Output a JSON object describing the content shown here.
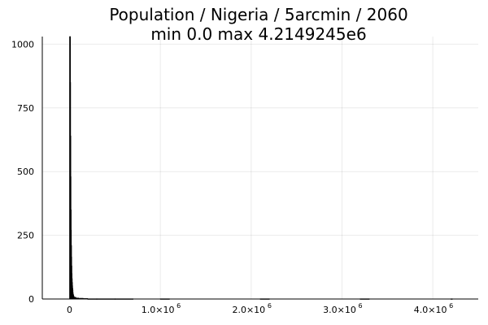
{
  "chart_data": {
    "type": "bar",
    "title_lines": [
      "Population / Nigeria / 5arcmin / 2060",
      "min 0.0  max 4.2149245e6"
    ],
    "xlabel": "",
    "ylabel": "",
    "xlim": [
      -300000,
      4500000
    ],
    "ylim": [
      0,
      1030
    ],
    "grid": true,
    "legend": "none",
    "bar_color": "#000000",
    "x_ticks": [
      {
        "value": 0,
        "mantissa": "0",
        "exp": ""
      },
      {
        "value": 1000000,
        "mantissa": "1.0×10",
        "exp": "6"
      },
      {
        "value": 2000000,
        "mantissa": "2.0×10",
        "exp": "6"
      },
      {
        "value": 3000000,
        "mantissa": "3.0×10",
        "exp": "6"
      },
      {
        "value": 4000000,
        "mantissa": "4.0×10",
        "exp": "6"
      }
    ],
    "y_ticks": [
      {
        "value": 0,
        "label": "0"
      },
      {
        "value": 250,
        "label": "250"
      },
      {
        "value": 500,
        "label": "500"
      },
      {
        "value": 750,
        "label": "750"
      },
      {
        "value": 1000,
        "label": "1000"
      }
    ],
    "bins": [
      {
        "x0": 0,
        "x1": 2000,
        "count": 1030
      },
      {
        "x0": 2000,
        "x1": 4000,
        "count": 850
      },
      {
        "x0": 4000,
        "x1": 6000,
        "count": 640
      },
      {
        "x0": 6000,
        "x1": 8000,
        "count": 480
      },
      {
        "x0": 8000,
        "x1": 10000,
        "count": 350
      },
      {
        "x0": 10000,
        "x1": 12000,
        "count": 270
      },
      {
        "x0": 12000,
        "x1": 14000,
        "count": 210
      },
      {
        "x0": 14000,
        "x1": 16000,
        "count": 165
      },
      {
        "x0": 16000,
        "x1": 18000,
        "count": 130
      },
      {
        "x0": 18000,
        "x1": 20000,
        "count": 100
      },
      {
        "x0": 20000,
        "x1": 22000,
        "count": 80
      },
      {
        "x0": 22000,
        "x1": 24000,
        "count": 65
      },
      {
        "x0": 24000,
        "x1": 26000,
        "count": 52
      },
      {
        "x0": 26000,
        "x1": 28000,
        "count": 42
      },
      {
        "x0": 28000,
        "x1": 30000,
        "count": 35
      },
      {
        "x0": 30000,
        "x1": 35000,
        "count": 25
      },
      {
        "x0": 35000,
        "x1": 40000,
        "count": 17
      },
      {
        "x0": 40000,
        "x1": 50000,
        "count": 11
      },
      {
        "x0": 50000,
        "x1": 70000,
        "count": 7
      },
      {
        "x0": 70000,
        "x1": 100000,
        "count": 4
      },
      {
        "x0": 100000,
        "x1": 150000,
        "count": 3
      },
      {
        "x0": 150000,
        "x1": 200000,
        "count": 2
      },
      {
        "x0": 200000,
        "x1": 300000,
        "count": 1
      },
      {
        "x0": 300000,
        "x1": 500000,
        "count": 1
      },
      {
        "x0": 500000,
        "x1": 700000,
        "count": 1
      },
      {
        "x0": 1000000,
        "x1": 1100000,
        "count": 1
      },
      {
        "x0": 2100000,
        "x1": 2200000,
        "count": 1
      },
      {
        "x0": 3200000,
        "x1": 3300000,
        "count": 1
      },
      {
        "x0": 4200000,
        "x1": 4214925,
        "count": 1
      }
    ]
  }
}
